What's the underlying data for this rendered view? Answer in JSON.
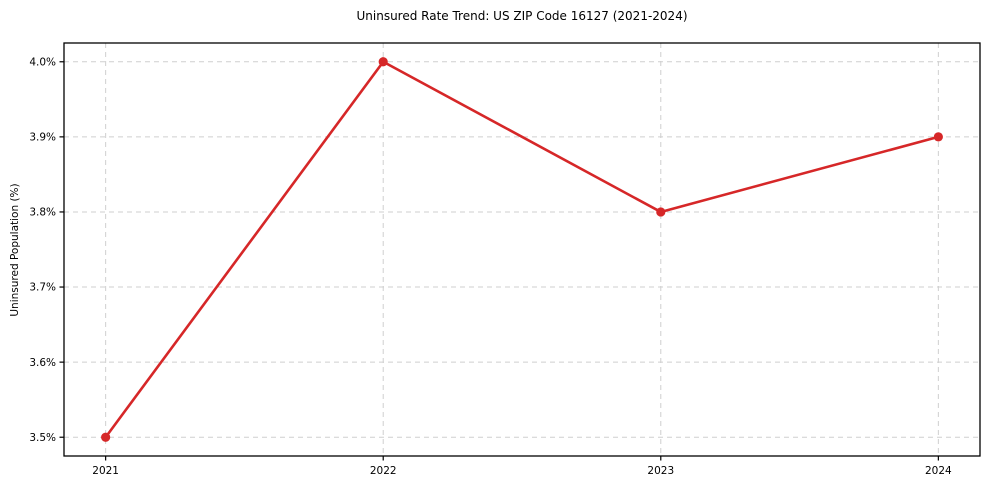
{
  "chart_data": {
    "type": "line",
    "title": "Uninsured Rate Trend: US ZIP Code 16127 (2021-2024)",
    "xlabel": "",
    "ylabel": "Uninsured Population (%)",
    "x": [
      2021,
      2022,
      2023,
      2024
    ],
    "values": [
      3.5,
      4.0,
      3.8,
      3.9
    ],
    "xticks": {
      "values": [
        2021,
        2022,
        2023,
        2024
      ],
      "labels": [
        "2021",
        "2022",
        "2023",
        "2024"
      ]
    },
    "yticks": {
      "values": [
        3.5,
        3.6,
        3.7,
        3.8,
        3.9,
        4.0
      ],
      "labels": [
        "3.5%",
        "3.6%",
        "3.7%",
        "3.8%",
        "3.9%",
        "4.0%"
      ]
    },
    "xlim": [
      2020.85,
      2024.15
    ],
    "ylim": [
      3.475,
      4.025
    ],
    "grid": true,
    "grid_style": "dashed",
    "legend": false,
    "marker": "circle",
    "colors": {
      "line": "#d62728",
      "marker": "#d62728",
      "grid": "#cfcfcf",
      "spine": "#000000",
      "text": "#000000",
      "background": "#ffffff"
    }
  }
}
